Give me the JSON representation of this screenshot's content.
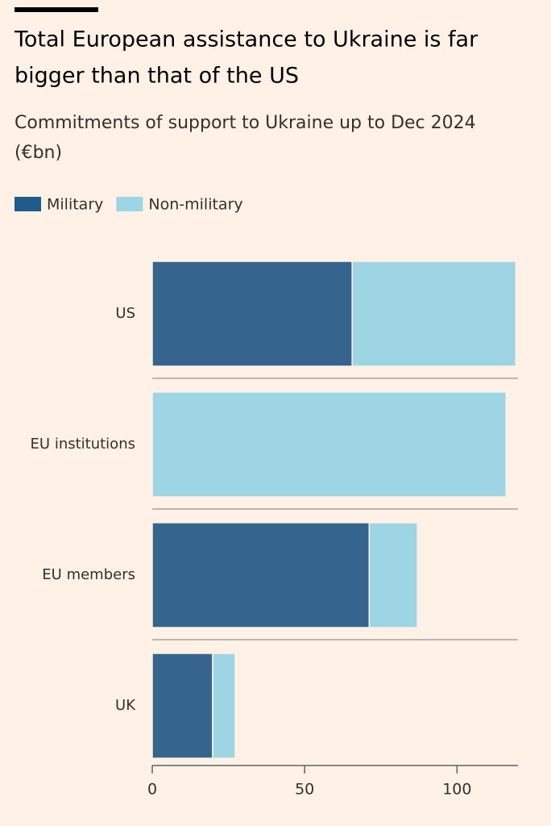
{
  "chart_data": {
    "type": "stacked-bar-horizontal",
    "title": [
      "Total European assistance to Ukraine is far",
      "bigger than that of the US"
    ],
    "subtitle": [
      "Commitments of support to Ukraine up to Dec 2024",
      "(€bn)"
    ],
    "categories": [
      "US",
      "EU institutions",
      "EU members",
      "UK"
    ],
    "series": [
      {
        "name": "Military",
        "color": "#35658f",
        "legend_color": "#1f5a8c",
        "values": [
          65.6,
          0,
          71.2,
          19.8
        ]
      },
      {
        "name": "Non-military",
        "color": "#9ed5e5",
        "legend_color": "#9ed5e5",
        "values": [
          53.7,
          116.1,
          15.8,
          7.4
        ]
      }
    ],
    "xlim": [
      0,
      120
    ],
    "xticks": [
      0,
      50,
      100
    ]
  }
}
